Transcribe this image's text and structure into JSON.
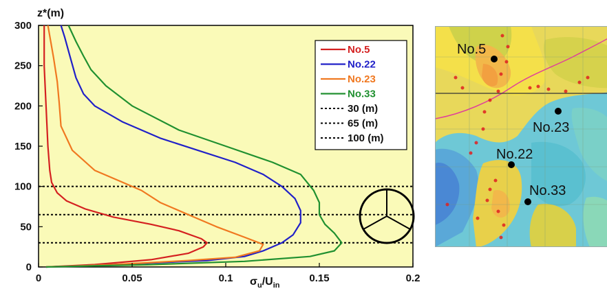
{
  "chart_data": {
    "type": "line",
    "ylabel": "z*(m)",
    "xlabel_main": "σ",
    "xlabel_sub1": "u",
    "xlabel_mid": "/U",
    "xlabel_sub2": "in",
    "xlim": [
      0,
      0.2
    ],
    "ylim": [
      0,
      300
    ],
    "xticks": [
      0,
      0.05,
      0.1,
      0.15,
      0.2
    ],
    "xtick_labels": [
      "0",
      "0.05",
      "0.1",
      "",
      "0.2"
    ],
    "xtick_label_extra": "0.15",
    "yticks": [
      0,
      50,
      100,
      150,
      200,
      250,
      300
    ],
    "ytick_labels": [
      "0",
      "50",
      "100",
      "150",
      "200",
      "250",
      "300"
    ],
    "legend_position": "top-right",
    "series": [
      {
        "name": "No.5",
        "color": "#d42020",
        "points": [
          [
            0.004,
            0
          ],
          [
            0.03,
            3
          ],
          [
            0.06,
            9
          ],
          [
            0.08,
            17
          ],
          [
            0.088,
            25
          ],
          [
            0.09,
            30
          ],
          [
            0.087,
            35
          ],
          [
            0.075,
            45
          ],
          [
            0.06,
            53
          ],
          [
            0.04,
            62
          ],
          [
            0.025,
            72
          ],
          [
            0.015,
            82
          ],
          [
            0.01,
            92
          ],
          [
            0.007,
            105
          ],
          [
            0.006,
            120
          ],
          [
            0.005,
            150
          ],
          [
            0.004,
            200
          ],
          [
            0.003,
            250
          ],
          [
            0.003,
            300
          ]
        ]
      },
      {
        "name": "No.22",
        "color": "#2020c8",
        "points": [
          [
            0.004,
            0
          ],
          [
            0.04,
            3
          ],
          [
            0.09,
            8
          ],
          [
            0.11,
            13
          ],
          [
            0.12,
            20
          ],
          [
            0.13,
            30
          ],
          [
            0.136,
            40
          ],
          [
            0.14,
            55
          ],
          [
            0.14,
            70
          ],
          [
            0.137,
            85
          ],
          [
            0.13,
            100
          ],
          [
            0.12,
            115
          ],
          [
            0.105,
            130
          ],
          [
            0.085,
            145
          ],
          [
            0.065,
            160
          ],
          [
            0.045,
            180
          ],
          [
            0.03,
            200
          ],
          [
            0.024,
            215
          ],
          [
            0.02,
            235
          ],
          [
            0.017,
            260
          ],
          [
            0.014,
            285
          ],
          [
            0.012,
            300
          ]
        ]
      },
      {
        "name": "No.23",
        "color": "#f07820",
        "points": [
          [
            0.004,
            0
          ],
          [
            0.04,
            3
          ],
          [
            0.08,
            8
          ],
          [
            0.105,
            12
          ],
          [
            0.118,
            20
          ],
          [
            0.12,
            28
          ],
          [
            0.11,
            37
          ],
          [
            0.095,
            50
          ],
          [
            0.08,
            65
          ],
          [
            0.065,
            80
          ],
          [
            0.055,
            95
          ],
          [
            0.045,
            105
          ],
          [
            0.03,
            120
          ],
          [
            0.018,
            145
          ],
          [
            0.012,
            175
          ],
          [
            0.011,
            205
          ],
          [
            0.01,
            230
          ],
          [
            0.008,
            260
          ],
          [
            0.005,
            300
          ]
        ]
      },
      {
        "name": "No.33",
        "color": "#209030",
        "points": [
          [
            0.004,
            0
          ],
          [
            0.06,
            3
          ],
          [
            0.11,
            7
          ],
          [
            0.145,
            13
          ],
          [
            0.158,
            20
          ],
          [
            0.162,
            30
          ],
          [
            0.158,
            42
          ],
          [
            0.153,
            53
          ],
          [
            0.15,
            65
          ],
          [
            0.15,
            80
          ],
          [
            0.147,
            95
          ],
          [
            0.14,
            115
          ],
          [
            0.125,
            130
          ],
          [
            0.1,
            150
          ],
          [
            0.075,
            170
          ],
          [
            0.05,
            200
          ],
          [
            0.036,
            225
          ],
          [
            0.028,
            245
          ],
          [
            0.024,
            262
          ],
          [
            0.02,
            280
          ],
          [
            0.016,
            300
          ]
        ]
      }
    ],
    "reference_lines": [
      {
        "name": "30 (m)",
        "y": 30
      },
      {
        "name": "65 (m)",
        "y": 65
      },
      {
        "name": "100 (m)",
        "y": 100
      }
    ]
  },
  "map": {
    "labels": [
      "No.5",
      "No.23",
      "No.22",
      "No.33"
    ]
  },
  "colors": {
    "plot_bg": "#fafab8",
    "reference_line": "#000000"
  }
}
